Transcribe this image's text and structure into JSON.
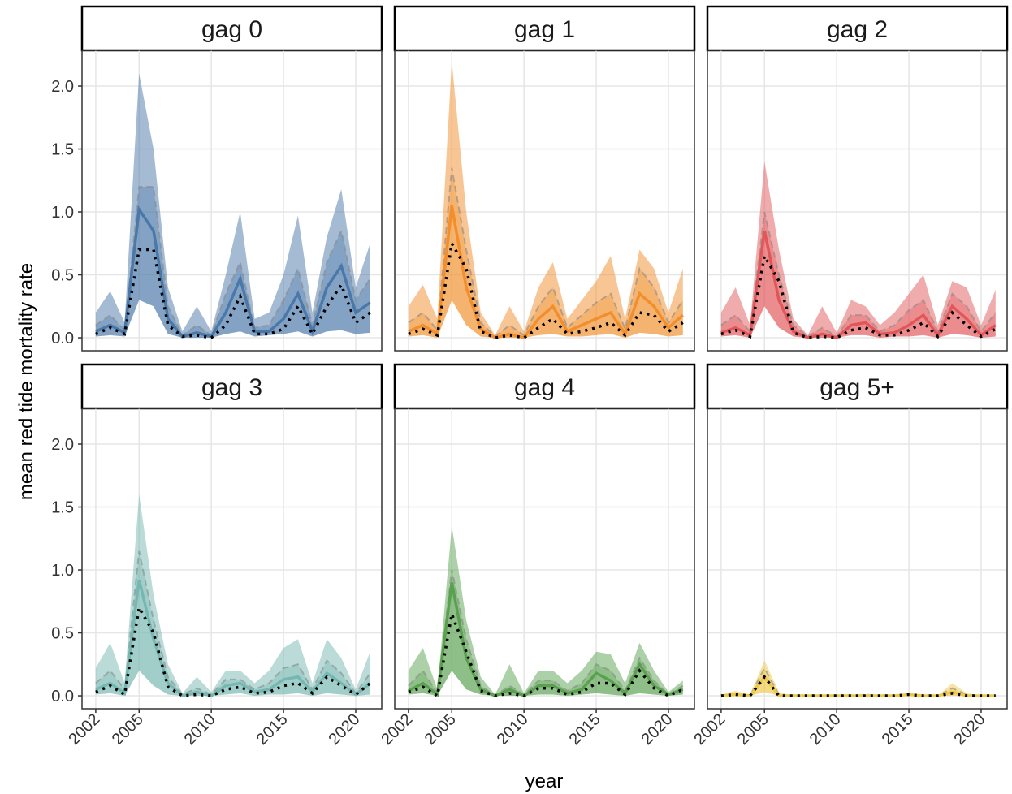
{
  "chart_data": {
    "type": "line",
    "ylabel": "mean red tide mortality rate",
    "xlabel": "year",
    "x": [
      2002,
      2003,
      2004,
      2005,
      2006,
      2007,
      2008,
      2009,
      2010,
      2011,
      2012,
      2013,
      2014,
      2015,
      2016,
      2017,
      2018,
      2019,
      2020,
      2021
    ],
    "xlim": [
      2001.05,
      2021.8
    ],
    "xticks": [
      2002,
      2005,
      2010,
      2015,
      2020
    ],
    "ylim": [
      -0.103,
      2.284
    ],
    "yticks": [
      {
        "value": 0,
        "label": "0.0"
      },
      {
        "value": 0.5,
        "label": "0.5"
      },
      {
        "value": 1,
        "label": "1.0"
      },
      {
        "value": 1.5,
        "label": "1.5"
      },
      {
        "value": 2,
        "label": "2.0"
      }
    ],
    "grid": true,
    "panels": [
      {
        "title": "gag 0",
        "color": "#4a78a8",
        "band_upper": [
          0.2,
          0.37,
          0.12,
          2.1,
          1.5,
          0.4,
          0.05,
          0.25,
          0.05,
          0.5,
          1.0,
          0.15,
          0.2,
          0.5,
          0.97,
          0.2,
          0.8,
          1.18,
          0.4,
          0.75
        ],
        "inner_upper": [
          0.1,
          0.18,
          0.06,
          1.2,
          1.2,
          0.25,
          0.02,
          0.1,
          0.02,
          0.35,
          0.6,
          0.08,
          0.1,
          0.3,
          0.55,
          0.1,
          0.6,
          0.85,
          0.3,
          0.47
        ],
        "band_lower": [
          0.01,
          0.02,
          0.01,
          0.3,
          0.25,
          0.03,
          0,
          0,
          0,
          0.03,
          0.05,
          0.01,
          0.02,
          0.03,
          0.05,
          0.01,
          0.05,
          0.06,
          0.03,
          0.04
        ],
        "mean": [
          0.05,
          0.1,
          0.04,
          1.02,
          0.85,
          0.15,
          0.01,
          0.04,
          0.01,
          0.2,
          0.47,
          0.05,
          0.05,
          0.15,
          0.35,
          0.05,
          0.4,
          0.57,
          0.2,
          0.28
        ],
        "median": [
          0.03,
          0.08,
          0.03,
          0.7,
          0.7,
          0.1,
          0.01,
          0.02,
          0,
          0.1,
          0.33,
          0.03,
          0.03,
          0.07,
          0.25,
          0.03,
          0.25,
          0.42,
          0.12,
          0.2
        ]
      },
      {
        "title": "gag 1",
        "color": "#f28e2b",
        "band_upper": [
          0.25,
          0.42,
          0.15,
          2.2,
          1.0,
          0.2,
          0.02,
          0.25,
          0.05,
          0.4,
          0.6,
          0.15,
          0.3,
          0.45,
          0.65,
          0.15,
          0.7,
          0.55,
          0.2,
          0.55
        ],
        "inner_upper": [
          0.12,
          0.2,
          0.06,
          1.35,
          0.7,
          0.12,
          0.01,
          0.1,
          0.02,
          0.25,
          0.4,
          0.08,
          0.18,
          0.28,
          0.35,
          0.07,
          0.55,
          0.4,
          0.12,
          0.3
        ],
        "band_lower": [
          0.01,
          0.02,
          0,
          0.3,
          0.1,
          0.01,
          0,
          0,
          0,
          0.02,
          0.03,
          0.01,
          0.01,
          0.02,
          0.03,
          0,
          0.04,
          0.03,
          0.01,
          0.02
        ],
        "mean": [
          0.05,
          0.1,
          0.03,
          1.05,
          0.4,
          0.07,
          0,
          0.03,
          0,
          0.15,
          0.25,
          0.05,
          0.1,
          0.15,
          0.2,
          0.03,
          0.35,
          0.25,
          0.08,
          0.18
        ],
        "median": [
          0.03,
          0.07,
          0.02,
          0.75,
          0.55,
          0.05,
          0,
          0.02,
          0,
          0.08,
          0.15,
          0.03,
          0.05,
          0.08,
          0.12,
          0.02,
          0.2,
          0.18,
          0.05,
          0.12
        ]
      },
      {
        "title": "gag 2",
        "color": "#e15759",
        "band_upper": [
          0.2,
          0.4,
          0.1,
          1.4,
          0.7,
          0.15,
          0.02,
          0.25,
          0.04,
          0.3,
          0.25,
          0.1,
          0.2,
          0.35,
          0.5,
          0.1,
          0.45,
          0.4,
          0.1,
          0.38
        ],
        "inner_upper": [
          0.1,
          0.18,
          0.05,
          1.0,
          0.5,
          0.1,
          0.01,
          0.08,
          0.01,
          0.18,
          0.18,
          0.05,
          0.1,
          0.22,
          0.3,
          0.05,
          0.35,
          0.25,
          0.05,
          0.2
        ],
        "band_lower": [
          0.01,
          0.02,
          0,
          0.25,
          0.08,
          0.01,
          0,
          0,
          0,
          0.02,
          0.02,
          0,
          0.01,
          0.01,
          0.02,
          0,
          0.03,
          0.02,
          0,
          0.01
        ],
        "mean": [
          0.04,
          0.08,
          0.02,
          0.85,
          0.3,
          0.05,
          0,
          0.03,
          0,
          0.1,
          0.12,
          0.03,
          0.04,
          0.1,
          0.18,
          0.02,
          0.25,
          0.15,
          0.02,
          0.1
        ],
        "median": [
          0.03,
          0.06,
          0.01,
          0.65,
          0.45,
          0.04,
          0,
          0.01,
          0,
          0.06,
          0.08,
          0.02,
          0.02,
          0.06,
          0.12,
          0.01,
          0.2,
          0.1,
          0.01,
          0.07
        ]
      },
      {
        "title": "gag 3",
        "color": "#76b7b2",
        "band_upper": [
          0.22,
          0.42,
          0.1,
          1.6,
          0.8,
          0.25,
          0.02,
          0.15,
          0.03,
          0.2,
          0.2,
          0.1,
          0.2,
          0.38,
          0.45,
          0.1,
          0.45,
          0.3,
          0.05,
          0.35
        ],
        "inner_upper": [
          0.1,
          0.2,
          0.05,
          1.15,
          0.6,
          0.15,
          0.01,
          0.06,
          0.01,
          0.13,
          0.13,
          0.05,
          0.1,
          0.22,
          0.25,
          0.05,
          0.28,
          0.18,
          0.02,
          0.18
        ],
        "band_lower": [
          0.01,
          0.02,
          0,
          0.2,
          0.08,
          0.01,
          0,
          0,
          0,
          0.01,
          0.02,
          0,
          0.01,
          0.01,
          0.02,
          0,
          0.02,
          0.01,
          0,
          0.01
        ],
        "mean": [
          0.05,
          0.1,
          0.02,
          0.92,
          0.45,
          0.1,
          0,
          0.03,
          0,
          0.08,
          0.1,
          0.03,
          0.05,
          0.13,
          0.15,
          0.03,
          0.18,
          0.1,
          0.01,
          0.1
        ],
        "median": [
          0.03,
          0.08,
          0.01,
          0.7,
          0.5,
          0.07,
          0,
          0.01,
          0,
          0.05,
          0.07,
          0.02,
          0.03,
          0.08,
          0.1,
          0.02,
          0.15,
          0.08,
          0.01,
          0.1
        ]
      },
      {
        "title": "gag 4",
        "color": "#59a14f",
        "band_upper": [
          0.2,
          0.38,
          0.05,
          1.35,
          0.6,
          0.15,
          0.01,
          0.25,
          0.02,
          0.2,
          0.2,
          0.1,
          0.2,
          0.35,
          0.33,
          0.1,
          0.42,
          0.2,
          0.03,
          0.12
        ],
        "inner_upper": [
          0.08,
          0.2,
          0.02,
          1.0,
          0.45,
          0.08,
          0,
          0.08,
          0.01,
          0.12,
          0.12,
          0.04,
          0.1,
          0.25,
          0.2,
          0.04,
          0.3,
          0.12,
          0.01,
          0.08
        ],
        "band_lower": [
          0.01,
          0.02,
          0,
          0.2,
          0.05,
          0.01,
          0,
          0,
          0,
          0.01,
          0.01,
          0,
          0.01,
          0.02,
          0.01,
          0,
          0.02,
          0.01,
          0,
          0.01
        ],
        "mean": [
          0.04,
          0.1,
          0.01,
          0.9,
          0.3,
          0.05,
          0,
          0.05,
          0,
          0.08,
          0.08,
          0.02,
          0.05,
          0.18,
          0.12,
          0.02,
          0.25,
          0.08,
          0.01,
          0.05
        ],
        "median": [
          0.03,
          0.07,
          0,
          0.65,
          0.35,
          0.04,
          0,
          0.02,
          0,
          0.06,
          0.06,
          0.01,
          0.03,
          0.1,
          0.1,
          0.01,
          0.2,
          0.06,
          0,
          0.05
        ]
      },
      {
        "title": "gag 5+",
        "color": "#edc948",
        "band_upper": [
          0.01,
          0.04,
          0.01,
          0.28,
          0.03,
          0,
          0,
          0,
          0,
          0.01,
          0.01,
          0,
          0.01,
          0.02,
          0.01,
          0,
          0.1,
          0.02,
          0,
          0.01
        ],
        "inner_upper": [
          0,
          0.02,
          0,
          0.22,
          0.01,
          0,
          0,
          0,
          0,
          0,
          0.01,
          0,
          0,
          0.01,
          0,
          0,
          0.06,
          0.01,
          0,
          0
        ],
        "band_lower": [
          0,
          0,
          0,
          0.03,
          0,
          0,
          0,
          0,
          0,
          0,
          0,
          0,
          0,
          0,
          0,
          0,
          0,
          0,
          0,
          0
        ],
        "mean": [
          0,
          0.01,
          0,
          0.15,
          0,
          0,
          0,
          0,
          0,
          0,
          0,
          0,
          0,
          0.01,
          0,
          0,
          0.03,
          0,
          0,
          0
        ],
        "median": [
          0,
          0.01,
          0,
          0.15,
          0,
          0,
          0,
          0,
          0,
          0,
          0,
          0,
          0,
          0.01,
          0,
          0,
          0.02,
          0,
          0,
          0
        ]
      }
    ]
  }
}
